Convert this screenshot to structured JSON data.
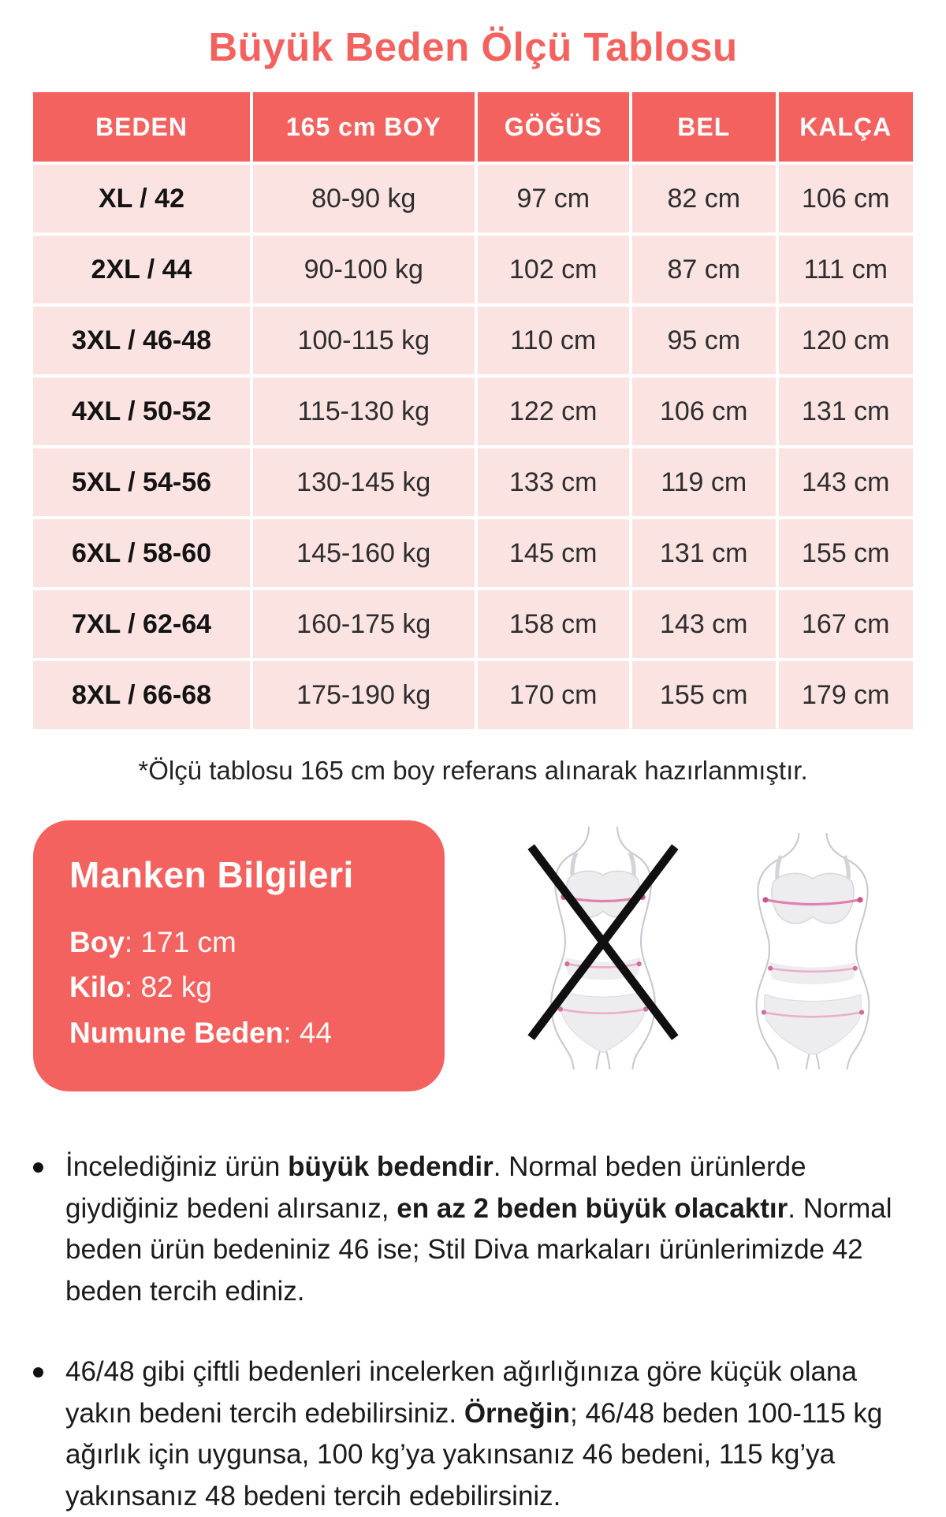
{
  "page": {
    "title": "Büyük Beden Ölçü Tablosu"
  },
  "table": {
    "headers": [
      "BEDEN",
      "165 cm BOY",
      "GÖĞÜS",
      "BEL",
      "KALÇA"
    ],
    "rows": [
      [
        "XL / 42",
        "80-90 kg",
        "97 cm",
        "82 cm",
        "106 cm"
      ],
      [
        "2XL / 44",
        "90-100 kg",
        "102 cm",
        "87 cm",
        "111 cm"
      ],
      [
        "3XL / 46-48",
        "100-115 kg",
        "110 cm",
        "95 cm",
        "120 cm"
      ],
      [
        "4XL / 50-52",
        "115-130 kg",
        "122 cm",
        "106 cm",
        "131 cm"
      ],
      [
        "5XL / 54-56",
        "130-145 kg",
        "133 cm",
        "119 cm",
        "143 cm"
      ],
      [
        "6XL / 58-60",
        "145-160 kg",
        "145 cm",
        "131 cm",
        "155 cm"
      ],
      [
        "7XL / 62-64",
        "160-175 kg",
        "158 cm",
        "143 cm",
        "167 cm"
      ],
      [
        "8XL / 66-68",
        "175-190 kg",
        "170 cm",
        "155 cm",
        "179 cm"
      ]
    ],
    "footnote": "*Ölçü tablosu 165 cm boy referans alınarak hazırlanmıştır."
  },
  "model_info": {
    "title": "Manken Bilgileri",
    "fields": [
      {
        "label": "Boy",
        "value": "171 cm"
      },
      {
        "label": "Kilo",
        "value": "82 kg"
      },
      {
        "label": "Numune Beden",
        "value": "44"
      }
    ]
  },
  "figures": {
    "wrong_icon": "crossed-out-slim-body-figure",
    "correct_icon": "plus-size-body-figure"
  },
  "notes": [
    {
      "segments": [
        {
          "text": "İncelediğiniz ürün ",
          "bold": false
        },
        {
          "text": "büyük bedendir",
          "bold": true
        },
        {
          "text": ". Normal beden ürünlerde giydiğiniz bedeni alırsanız, ",
          "bold": false
        },
        {
          "text": "en az 2 beden büyük olacaktır",
          "bold": true
        },
        {
          "text": ". Normal beden ürün bedeniniz 46 ise; Stil Diva markaları ürünlerimizde 42 beden tercih ediniz.",
          "bold": false
        }
      ]
    },
    {
      "segments": [
        {
          "text": "46/48 gibi çiftli bedenleri incelerken ağırlığınıza göre küçük olana yakın bedeni tercih edebilirsiniz. ",
          "bold": false
        },
        {
          "text": "Örneğin",
          "bold": true
        },
        {
          "text": "; 46/48 beden 100-115 kg ağırlık için uygunsa, 100 kg’ya yakınsanız 46 bedeni, 115 kg’ya yakınsanız 48 bedeni tercih edebilirsiniz.",
          "bold": false
        }
      ]
    }
  ],
  "colors": {
    "coral": "#F4625F",
    "cell_pink": "#FBE3E2",
    "text_dark": "#1F1F1F",
    "measure_line_strong": "#E27FAE",
    "measure_line_soft": "#ECAEC9",
    "figure_outline": "#C9C9CE"
  }
}
